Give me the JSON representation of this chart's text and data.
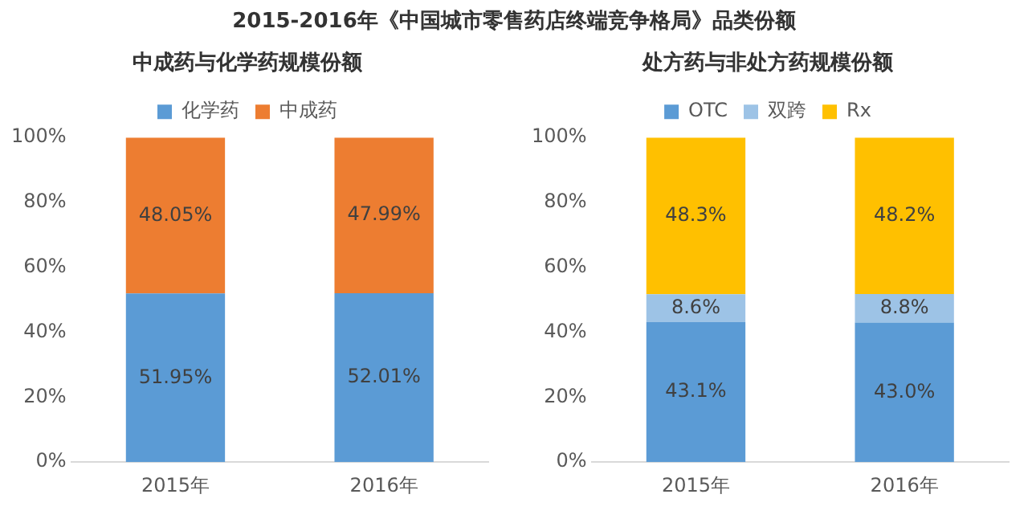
{
  "chart_data": [
    {
      "type": "other",
      "title": "2015-2016年《中国城市零售药店终端竞争格局》品类份额"
    },
    {
      "type": "bar",
      "title": "中成药与化学药规模份额",
      "categories": [
        "2015年",
        "2016年"
      ],
      "stacked": true,
      "legend": "top",
      "grid": false,
      "ylim": [
        0,
        100
      ],
      "yticks": [
        {
          "value": 0,
          "label": "0%"
        },
        {
          "value": 20,
          "label": "20%"
        },
        {
          "value": 40,
          "label": "40%"
        },
        {
          "value": 60,
          "label": "60%"
        },
        {
          "value": 80,
          "label": "80%"
        },
        {
          "value": 100,
          "label": "100%"
        }
      ],
      "series": [
        {
          "name": "化学药",
          "color": "#5b9bd5",
          "values": [
            51.95,
            52.01
          ],
          "value_labels": [
            "51.95%",
            "52.01%"
          ]
        },
        {
          "name": "中成药",
          "color": "#ed7d31",
          "values": [
            48.05,
            47.99
          ],
          "value_labels": [
            "48.05%",
            "47.99%"
          ]
        }
      ]
    },
    {
      "type": "bar",
      "title": "处方药与非处方药规模份额",
      "categories": [
        "2015年",
        "2016年"
      ],
      "stacked": true,
      "legend": "top",
      "grid": false,
      "ylim": [
        0,
        100
      ],
      "yticks": [
        {
          "value": 0,
          "label": "0%"
        },
        {
          "value": 20,
          "label": "20%"
        },
        {
          "value": 40,
          "label": "40%"
        },
        {
          "value": 60,
          "label": "60%"
        },
        {
          "value": 80,
          "label": "80%"
        },
        {
          "value": 100,
          "label": "100%"
        }
      ],
      "series": [
        {
          "name": "OTC",
          "color": "#5b9bd5",
          "values": [
            43.1,
            43.0
          ],
          "value_labels": [
            "43.1%",
            "43.0%"
          ]
        },
        {
          "name": "双跨",
          "color": "#9dc3e6",
          "values": [
            8.6,
            8.8
          ],
          "value_labels": [
            "8.6%",
            "8.8%"
          ]
        },
        {
          "name": "Rx",
          "color": "#ffc000",
          "values": [
            48.3,
            48.2
          ],
          "value_labels": [
            "48.3%",
            "48.2%"
          ]
        }
      ]
    }
  ]
}
